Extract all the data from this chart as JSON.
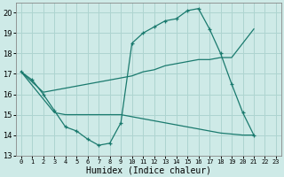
{
  "xlabel": "Humidex (Indice chaleur)",
  "background_color": "#ceeae7",
  "grid_color": "#aed4d0",
  "line_color": "#1a7a6e",
  "xlim": [
    -0.5,
    23.5
  ],
  "ylim": [
    13,
    20.5
  ],
  "yticks": [
    13,
    14,
    15,
    16,
    17,
    18,
    19,
    20
  ],
  "xticks": [
    0,
    1,
    2,
    3,
    4,
    5,
    6,
    7,
    8,
    9,
    10,
    11,
    12,
    13,
    14,
    15,
    16,
    17,
    18,
    19,
    20,
    21,
    22,
    23
  ],
  "series": [
    {
      "x": [
        0,
        1,
        2,
        3,
        4,
        5,
        6,
        7,
        8,
        9,
        10,
        11,
        12,
        13,
        14,
        15,
        16,
        17,
        18,
        19,
        20,
        21
      ],
      "y": [
        17.1,
        16.7,
        16.0,
        15.2,
        14.4,
        14.2,
        13.8,
        13.5,
        13.6,
        14.6,
        18.5,
        19.0,
        19.3,
        19.6,
        19.7,
        20.1,
        20.2,
        19.2,
        18.0,
        16.5,
        15.1,
        14.0
      ],
      "has_marker": true
    },
    {
      "x": [
        0,
        2,
        3,
        4,
        5,
        6,
        7,
        8,
        9,
        10,
        11,
        12,
        13,
        14,
        15,
        16,
        17,
        18,
        19,
        21
      ],
      "y": [
        17.1,
        16.1,
        16.2,
        16.3,
        16.4,
        16.5,
        16.6,
        16.7,
        16.8,
        16.9,
        17.1,
        17.2,
        17.4,
        17.5,
        17.6,
        17.7,
        17.7,
        17.8,
        17.8,
        19.2
      ],
      "has_marker": false
    },
    {
      "x": [
        0,
        3,
        4,
        5,
        6,
        7,
        8,
        9,
        10,
        11,
        12,
        13,
        14,
        15,
        16,
        17,
        18,
        19,
        20,
        21
      ],
      "y": [
        17.1,
        15.1,
        15.0,
        15.0,
        15.0,
        15.0,
        15.0,
        15.0,
        14.9,
        14.8,
        14.7,
        14.6,
        14.5,
        14.4,
        14.3,
        14.2,
        14.1,
        14.05,
        14.0,
        14.0
      ],
      "has_marker": false
    }
  ]
}
